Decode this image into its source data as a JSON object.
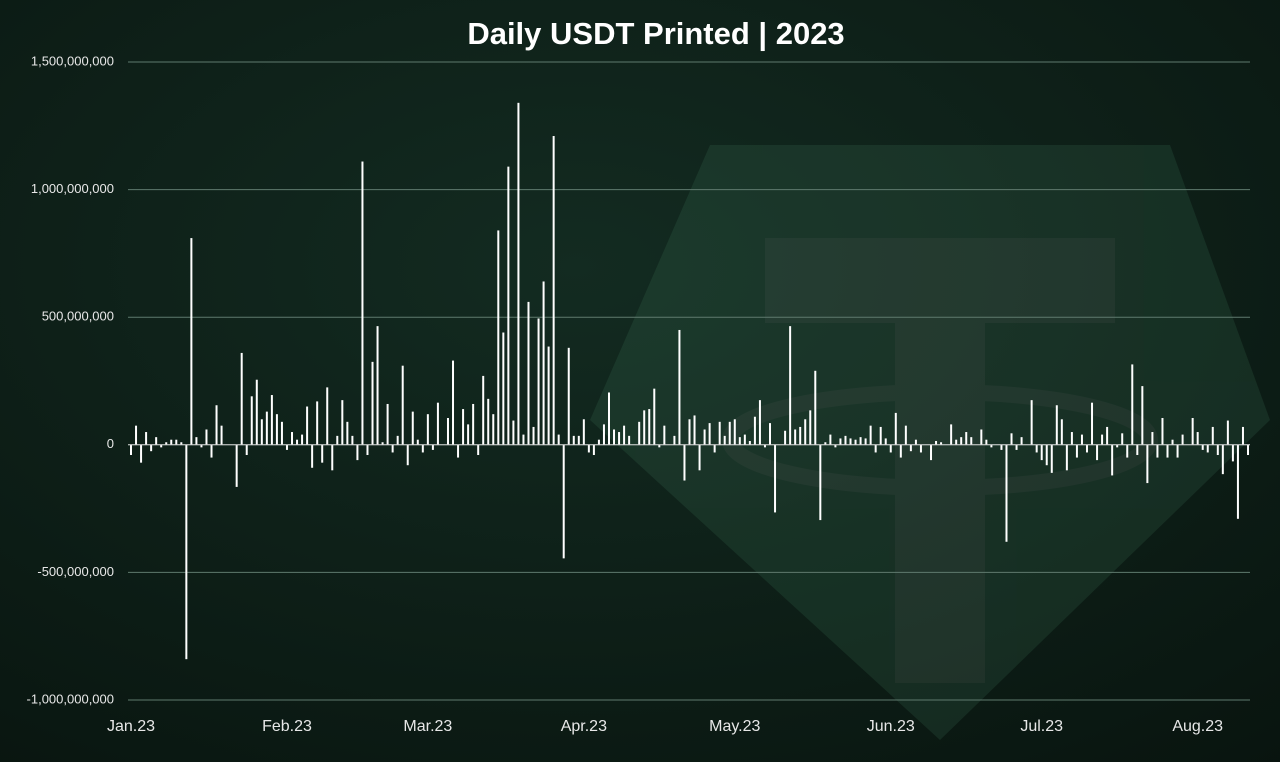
{
  "chart_data": {
    "type": "bar",
    "title": "Daily USDT Printed | 2023",
    "categories": [
      "Jan.23",
      null,
      null,
      null,
      null,
      null,
      null,
      null,
      null,
      null,
      null,
      null,
      null,
      null,
      null,
      null,
      null,
      null,
      null,
      null,
      null,
      null,
      null,
      null,
      null,
      null,
      null,
      null,
      null,
      null,
      null,
      "Feb.23",
      null,
      null,
      null,
      null,
      null,
      null,
      null,
      null,
      null,
      null,
      null,
      null,
      null,
      null,
      null,
      null,
      null,
      null,
      null,
      null,
      null,
      null,
      null,
      null,
      null,
      null,
      null,
      "Mar.23",
      null,
      null,
      null,
      null,
      null,
      null,
      null,
      null,
      null,
      null,
      null,
      null,
      null,
      null,
      null,
      null,
      null,
      null,
      null,
      null,
      null,
      null,
      null,
      null,
      null,
      null,
      null,
      null,
      null,
      null,
      "Apr.23",
      null,
      null,
      null,
      null,
      null,
      null,
      null,
      null,
      null,
      null,
      null,
      null,
      null,
      null,
      null,
      null,
      null,
      null,
      null,
      null,
      null,
      null,
      null,
      null,
      null,
      null,
      null,
      null,
      null,
      "May.23",
      null,
      null,
      null,
      null,
      null,
      null,
      null,
      null,
      null,
      null,
      null,
      null,
      null,
      null,
      null,
      null,
      null,
      null,
      null,
      null,
      null,
      null,
      null,
      null,
      null,
      null,
      null,
      null,
      null,
      null,
      "Jun.23",
      null,
      null,
      null,
      null,
      null,
      null,
      null,
      null,
      null,
      null,
      null,
      null,
      null,
      null,
      null,
      null,
      null,
      null,
      null,
      null,
      null,
      null,
      null,
      null,
      null,
      null,
      null,
      null,
      null,
      "Jul.23",
      null,
      null,
      null,
      null,
      null,
      null,
      null,
      null,
      null,
      null,
      null,
      null,
      null,
      null,
      null,
      null,
      null,
      null,
      null,
      null,
      null,
      null,
      null,
      null,
      null,
      null,
      null,
      null,
      null,
      null,
      "Aug.23",
      null,
      null,
      null,
      null,
      null,
      null,
      null,
      null,
      null,
      null
    ],
    "values": [
      -40000000,
      75000000,
      -70000000,
      50000000,
      -25000000,
      30000000,
      -10000000,
      10000000,
      20000000,
      20000000,
      10000000,
      -840000000,
      810000000,
      30000000,
      -10000000,
      60000000,
      -50000000,
      155000000,
      75000000,
      0,
      0,
      -165000000,
      360000000,
      -40000000,
      190000000,
      255000000,
      100000000,
      130000000,
      195000000,
      120000000,
      90000000,
      -20000000,
      50000000,
      20000000,
      40000000,
      150000000,
      -90000000,
      170000000,
      -70000000,
      225000000,
      -100000000,
      35000000,
      175000000,
      90000000,
      35000000,
      -60000000,
      1110000000,
      -40000000,
      325000000,
      465000000,
      10000000,
      160000000,
      -30000000,
      35000000,
      310000000,
      -80000000,
      130000000,
      20000000,
      -30000000,
      120000000,
      -20000000,
      165000000,
      0,
      105000000,
      330000000,
      -50000000,
      140000000,
      80000000,
      160000000,
      -40000000,
      270000000,
      180000000,
      120000000,
      840000000,
      440000000,
      1090000000,
      95000000,
      1340000000,
      40000000,
      560000000,
      70000000,
      495000000,
      640000000,
      385000000,
      1210000000,
      40000000,
      -445000000,
      380000000,
      35000000,
      35000000,
      100000000,
      -30000000,
      -40000000,
      20000000,
      80000000,
      205000000,
      60000000,
      50000000,
      75000000,
      35000000,
      0,
      90000000,
      135000000,
      140000000,
      220000000,
      -10000000,
      75000000,
      0,
      35000000,
      450000000,
      -140000000,
      100000000,
      115000000,
      -100000000,
      60000000,
      85000000,
      -30000000,
      90000000,
      35000000,
      90000000,
      100000000,
      30000000,
      40000000,
      15000000,
      110000000,
      175000000,
      -10000000,
      85000000,
      -265000000,
      0,
      55000000,
      465000000,
      60000000,
      70000000,
      100000000,
      135000000,
      290000000,
      -295000000,
      10000000,
      40000000,
      -10000000,
      25000000,
      35000000,
      25000000,
      20000000,
      30000000,
      25000000,
      75000000,
      -30000000,
      70000000,
      25000000,
      -30000000,
      125000000,
      -50000000,
      75000000,
      -25000000,
      20000000,
      -30000000,
      0,
      -60000000,
      15000000,
      10000000,
      0,
      80000000,
      20000000,
      30000000,
      50000000,
      30000000,
      0,
      60000000,
      20000000,
      -10000000,
      0,
      -20000000,
      -380000000,
      45000000,
      -20000000,
      30000000,
      0,
      175000000,
      -30000000,
      -60000000,
      -80000000,
      -110000000,
      155000000,
      100000000,
      -100000000,
      50000000,
      -50000000,
      40000000,
      -30000000,
      165000000,
      -60000000,
      40000000,
      70000000,
      -120000000,
      -10000000,
      45000000,
      -50000000,
      315000000,
      -40000000,
      230000000,
      -150000000,
      50000000,
      -50000000,
      105000000,
      -50000000,
      20000000,
      -50000000,
      40000000,
      0,
      105000000,
      50000000,
      -20000000,
      -30000000,
      70000000,
      -40000000,
      -115000000,
      95000000,
      -65000000,
      -290000000,
      70000000,
      -40000000
    ],
    "color": "#ffffff",
    "ylim": [
      -1000000000,
      1500000000
    ],
    "yticks": [
      {
        "value": -1000000000,
        "label": "-1,000,000,000"
      },
      {
        "value": -500000000,
        "label": "-500,000,000"
      },
      0,
      {
        "value": 500000000,
        "label": "500,000,000"
      },
      {
        "value": 1000000000,
        "label": "1,000,000,000"
      },
      {
        "value": 1500000000,
        "label": "1,500,000,000"
      }
    ],
    "grid": true
  }
}
